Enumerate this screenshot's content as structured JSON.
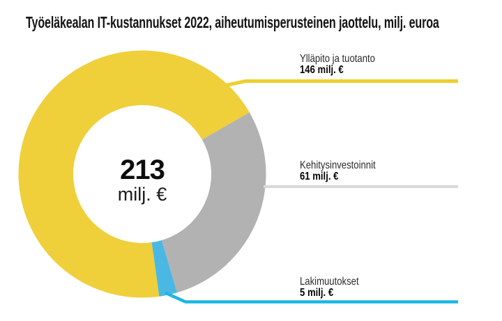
{
  "title": "Työeläkealan IT-kustannukset 2022, aiheutumisperusteinen jaottelu, milj. euroa",
  "center": {
    "total": "213",
    "unit": "milj. €"
  },
  "chart_data": {
    "type": "pie",
    "subtype": "donut",
    "title": "Työeläkealan IT-kustannukset 2022, aiheutumisperusteinen jaottelu, milj. euroa",
    "unit": "milj. euroa",
    "center_total_label": "213",
    "center_unit_label": "milj. €",
    "segments": [
      {
        "label": "Ylläpito ja tuotanto",
        "value": 146,
        "value_label": "146 milj. €",
        "color": "#EFD03A",
        "leader_color": "#EFCF2D"
      },
      {
        "label": "Kehitysinvestoinnit",
        "value": 61,
        "value_label": "61 milj. €",
        "color": "#B3B2B2",
        "leader_color": "#D9D9D9"
      },
      {
        "label": "Lakimuutokset",
        "value": 5,
        "value_label": "5 milj. €",
        "color": "#4BB8E4",
        "leader_color": "#1DB5E4"
      }
    ],
    "layout": {
      "donut": true,
      "clockwise": true,
      "start_angle_deg": 172.1,
      "labels_position": "right",
      "center_label": true,
      "grid": false,
      "legend": false
    }
  }
}
